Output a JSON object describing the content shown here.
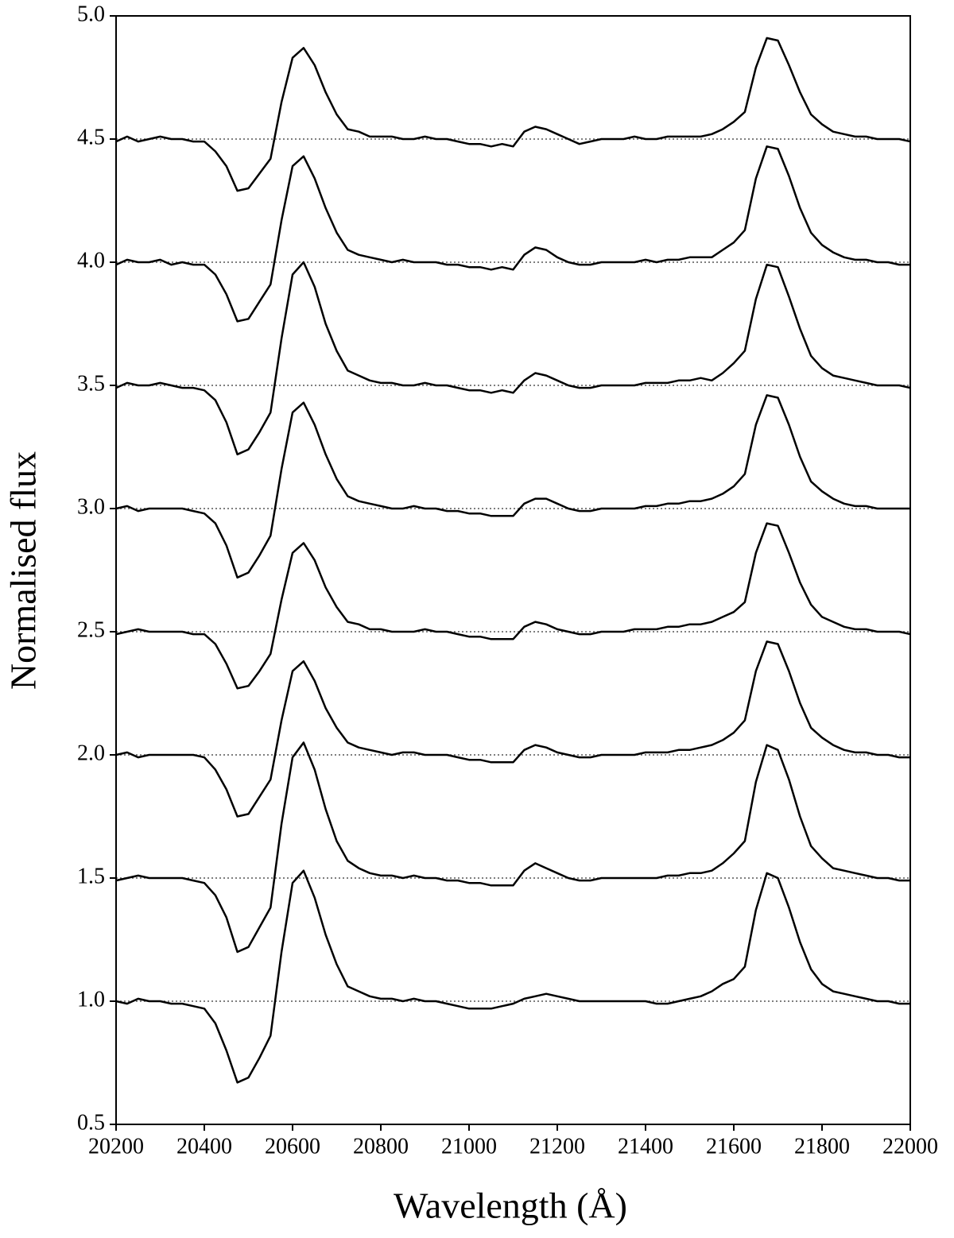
{
  "chart_data": {
    "type": "line",
    "xlabel": "Wavelength (Å)",
    "ylabel": "Normalised flux",
    "xlim": [
      20200,
      22000
    ],
    "ylim": [
      0.5,
      5.0
    ],
    "xticks": [
      20200,
      20400,
      20600,
      20800,
      21000,
      21200,
      21400,
      21600,
      21800,
      22000
    ],
    "yticks": [
      {
        "value": 0.5,
        "label": "0.5"
      },
      {
        "value": 1,
        "label": "1.0"
      },
      {
        "value": 1.5,
        "label": "1.5"
      },
      {
        "value": 2,
        "label": "2.0"
      },
      {
        "value": 2.5,
        "label": "2.5"
      },
      {
        "value": 3,
        "label": "3.0"
      },
      {
        "value": 3.5,
        "label": "3.5"
      },
      {
        "value": 4,
        "label": "4.0"
      },
      {
        "value": 4.5,
        "label": "4.5"
      },
      {
        "value": 5,
        "label": "5.0"
      }
    ],
    "hlines": [
      1,
      1.5,
      2,
      2.5,
      3,
      3.5,
      4,
      4.5
    ],
    "x": [
      20200,
      20225,
      20250,
      20275,
      20300,
      20325,
      20350,
      20375,
      20400,
      20425,
      20450,
      20475,
      20500,
      20525,
      20550,
      20575,
      20600,
      20625,
      20650,
      20675,
      20700,
      20725,
      20750,
      20775,
      20800,
      20825,
      20850,
      20875,
      20900,
      20925,
      20950,
      20975,
      21000,
      21025,
      21050,
      21075,
      21100,
      21125,
      21150,
      21175,
      21200,
      21225,
      21250,
      21275,
      21300,
      21325,
      21350,
      21375,
      21400,
      21425,
      21450,
      21475,
      21500,
      21525,
      21550,
      21575,
      21600,
      21625,
      21650,
      21675,
      21700,
      21725,
      21750,
      21775,
      21800,
      21825,
      21850,
      21875,
      21900,
      21925,
      21950,
      21975,
      22000
    ],
    "series": [
      {
        "color": "#000000",
        "values": [
          4.49,
          4.51,
          4.49,
          4.5,
          4.51,
          4.5,
          4.5,
          4.49,
          4.49,
          4.45,
          4.39,
          4.29,
          4.3,
          4.36,
          4.42,
          4.65,
          4.83,
          4.87,
          4.8,
          4.69,
          4.6,
          4.54,
          4.53,
          4.51,
          4.51,
          4.51,
          4.5,
          4.5,
          4.51,
          4.5,
          4.5,
          4.49,
          4.48,
          4.48,
          4.47,
          4.48,
          4.47,
          4.53,
          4.55,
          4.54,
          4.52,
          4.5,
          4.48,
          4.49,
          4.5,
          4.5,
          4.5,
          4.51,
          4.5,
          4.5,
          4.51,
          4.51,
          4.51,
          4.51,
          4.52,
          4.54,
          4.57,
          4.61,
          4.79,
          4.91,
          4.9,
          4.8,
          4.69,
          4.6,
          4.56,
          4.53,
          4.52,
          4.51,
          4.51,
          4.5,
          4.5,
          4.5,
          4.49
        ]
      },
      {
        "color": "#000000",
        "values": [
          3.99,
          4.01,
          4.0,
          4.0,
          4.01,
          3.99,
          4.0,
          3.99,
          3.99,
          3.95,
          3.87,
          3.76,
          3.77,
          3.84,
          3.91,
          4.17,
          4.39,
          4.43,
          4.34,
          4.22,
          4.12,
          4.05,
          4.03,
          4.02,
          4.01,
          4.0,
          4.01,
          4.0,
          4.0,
          4.0,
          3.99,
          3.99,
          3.98,
          3.98,
          3.97,
          3.98,
          3.97,
          4.03,
          4.06,
          4.05,
          4.02,
          4.0,
          3.99,
          3.99,
          4.0,
          4.0,
          4.0,
          4.0,
          4.01,
          4.0,
          4.01,
          4.01,
          4.02,
          4.02,
          4.02,
          4.05,
          4.08,
          4.13,
          4.34,
          4.47,
          4.46,
          4.35,
          4.22,
          4.12,
          4.07,
          4.04,
          4.02,
          4.01,
          4.01,
          4.0,
          4.0,
          3.99,
          3.99
        ]
      },
      {
        "color": "#000000",
        "values": [
          3.49,
          3.51,
          3.5,
          3.5,
          3.51,
          3.5,
          3.49,
          3.49,
          3.48,
          3.44,
          3.35,
          3.22,
          3.24,
          3.31,
          3.39,
          3.69,
          3.95,
          4.0,
          3.9,
          3.75,
          3.64,
          3.56,
          3.54,
          3.52,
          3.51,
          3.51,
          3.5,
          3.5,
          3.51,
          3.5,
          3.5,
          3.49,
          3.48,
          3.48,
          3.47,
          3.48,
          3.47,
          3.52,
          3.55,
          3.54,
          3.52,
          3.5,
          3.49,
          3.49,
          3.5,
          3.5,
          3.5,
          3.5,
          3.51,
          3.51,
          3.51,
          3.52,
          3.52,
          3.53,
          3.52,
          3.55,
          3.59,
          3.64,
          3.85,
          3.99,
          3.98,
          3.86,
          3.73,
          3.62,
          3.57,
          3.54,
          3.53,
          3.52,
          3.51,
          3.5,
          3.5,
          3.5,
          3.49
        ]
      },
      {
        "color": "#000000",
        "values": [
          3.0,
          3.01,
          2.99,
          3.0,
          3.0,
          3.0,
          3.0,
          2.99,
          2.98,
          2.94,
          2.85,
          2.72,
          2.74,
          2.81,
          2.89,
          3.16,
          3.39,
          3.43,
          3.34,
          3.22,
          3.12,
          3.05,
          3.03,
          3.02,
          3.01,
          3.0,
          3.0,
          3.01,
          3.0,
          3.0,
          2.99,
          2.99,
          2.98,
          2.98,
          2.97,
          2.97,
          2.97,
          3.02,
          3.04,
          3.04,
          3.02,
          3.0,
          2.99,
          2.99,
          3.0,
          3.0,
          3.0,
          3.0,
          3.01,
          3.01,
          3.02,
          3.02,
          3.03,
          3.03,
          3.04,
          3.06,
          3.09,
          3.14,
          3.34,
          3.46,
          3.45,
          3.34,
          3.21,
          3.11,
          3.07,
          3.04,
          3.02,
          3.01,
          3.01,
          3.0,
          3.0,
          3.0,
          3.0
        ]
      },
      {
        "color": "#000000",
        "values": [
          2.49,
          2.5,
          2.51,
          2.5,
          2.5,
          2.5,
          2.5,
          2.49,
          2.49,
          2.45,
          2.37,
          2.27,
          2.28,
          2.34,
          2.41,
          2.63,
          2.82,
          2.86,
          2.79,
          2.68,
          2.6,
          2.54,
          2.53,
          2.51,
          2.51,
          2.5,
          2.5,
          2.5,
          2.51,
          2.5,
          2.5,
          2.49,
          2.48,
          2.48,
          2.47,
          2.47,
          2.47,
          2.52,
          2.54,
          2.53,
          2.51,
          2.5,
          2.49,
          2.49,
          2.5,
          2.5,
          2.5,
          2.51,
          2.51,
          2.51,
          2.52,
          2.52,
          2.53,
          2.53,
          2.54,
          2.56,
          2.58,
          2.62,
          2.82,
          2.94,
          2.93,
          2.82,
          2.7,
          2.61,
          2.56,
          2.54,
          2.52,
          2.51,
          2.51,
          2.5,
          2.5,
          2.5,
          2.49
        ]
      },
      {
        "color": "#000000",
        "values": [
          2.0,
          2.01,
          1.99,
          2.0,
          2.0,
          2.0,
          2.0,
          2.0,
          1.99,
          1.94,
          1.86,
          1.75,
          1.76,
          1.83,
          1.9,
          2.14,
          2.34,
          2.38,
          2.3,
          2.19,
          2.11,
          2.05,
          2.03,
          2.02,
          2.01,
          2.0,
          2.01,
          2.01,
          2.0,
          2.0,
          2.0,
          1.99,
          1.98,
          1.98,
          1.97,
          1.97,
          1.97,
          2.02,
          2.04,
          2.03,
          2.01,
          2.0,
          1.99,
          1.99,
          2.0,
          2.0,
          2.0,
          2.0,
          2.01,
          2.01,
          2.01,
          2.02,
          2.02,
          2.03,
          2.04,
          2.06,
          2.09,
          2.14,
          2.34,
          2.46,
          2.45,
          2.34,
          2.21,
          2.11,
          2.07,
          2.04,
          2.02,
          2.01,
          2.01,
          2.0,
          2.0,
          1.99,
          1.99
        ]
      },
      {
        "color": "#000000",
        "values": [
          1.49,
          1.5,
          1.51,
          1.5,
          1.5,
          1.5,
          1.5,
          1.49,
          1.48,
          1.43,
          1.34,
          1.2,
          1.22,
          1.3,
          1.38,
          1.72,
          1.99,
          2.05,
          1.94,
          1.78,
          1.65,
          1.57,
          1.54,
          1.52,
          1.51,
          1.51,
          1.5,
          1.51,
          1.5,
          1.5,
          1.49,
          1.49,
          1.48,
          1.48,
          1.47,
          1.47,
          1.47,
          1.53,
          1.56,
          1.54,
          1.52,
          1.5,
          1.49,
          1.49,
          1.5,
          1.5,
          1.5,
          1.5,
          1.5,
          1.5,
          1.51,
          1.51,
          1.52,
          1.52,
          1.53,
          1.56,
          1.6,
          1.65,
          1.89,
          2.04,
          2.02,
          1.9,
          1.75,
          1.63,
          1.58,
          1.54,
          1.53,
          1.52,
          1.51,
          1.5,
          1.5,
          1.49,
          1.49
        ]
      },
      {
        "color": "#000000",
        "values": [
          1.0,
          0.99,
          1.01,
          1.0,
          1.0,
          0.99,
          0.99,
          0.98,
          0.97,
          0.91,
          0.8,
          0.67,
          0.69,
          0.77,
          0.86,
          1.2,
          1.48,
          1.53,
          1.42,
          1.27,
          1.15,
          1.06,
          1.04,
          1.02,
          1.01,
          1.01,
          1.0,
          1.01,
          1.0,
          1.0,
          0.99,
          0.98,
          0.97,
          0.97,
          0.97,
          0.98,
          0.99,
          1.01,
          1.02,
          1.03,
          1.02,
          1.01,
          1.0,
          1.0,
          1.0,
          1.0,
          1.0,
          1.0,
          1.0,
          0.99,
          0.99,
          1.0,
          1.01,
          1.02,
          1.04,
          1.07,
          1.09,
          1.14,
          1.37,
          1.52,
          1.5,
          1.38,
          1.24,
          1.13,
          1.07,
          1.04,
          1.03,
          1.02,
          1.01,
          1.0,
          1.0,
          0.99,
          0.99
        ]
      }
    ]
  }
}
